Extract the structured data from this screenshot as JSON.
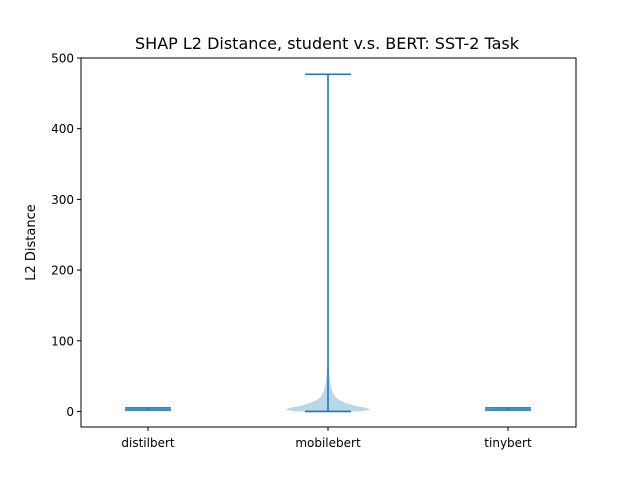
{
  "chart_data": {
    "type": "violin",
    "title": "SHAP L2 Distance, student v.s. BERT: SST-2 Task",
    "xlabel": "",
    "ylabel": "L2 Distance",
    "categories": [
      "distilbert",
      "mobilebert",
      "tinybert"
    ],
    "ylim": [
      -22,
      500
    ],
    "yticks": [
      0,
      100,
      200,
      300,
      400,
      500
    ],
    "grid": false,
    "series": [
      {
        "category": "distilbert",
        "min": 2,
        "max": 5,
        "density": [
          {
            "y": 2.0,
            "w": 0.05
          },
          {
            "y": 2.5,
            "w": 0.25
          },
          {
            "y": 3.0,
            "w": 0.5
          },
          {
            "y": 3.5,
            "w": 0.5
          },
          {
            "y": 4.0,
            "w": 0.3
          },
          {
            "y": 4.5,
            "w": 0.1
          },
          {
            "y": 5.0,
            "w": 0.02
          }
        ]
      },
      {
        "category": "mobilebert",
        "min": 0,
        "max": 477,
        "density": [
          {
            "y": 0,
            "w": 0.65
          },
          {
            "y": 2,
            "w": 0.95
          },
          {
            "y": 5,
            "w": 0.85
          },
          {
            "y": 8,
            "w": 0.6
          },
          {
            "y": 12,
            "w": 0.4
          },
          {
            "y": 16,
            "w": 0.25
          },
          {
            "y": 20,
            "w": 0.17
          },
          {
            "y": 25,
            "w": 0.12
          },
          {
            "y": 30,
            "w": 0.09
          },
          {
            "y": 35,
            "w": 0.065
          },
          {
            "y": 40,
            "w": 0.05
          },
          {
            "y": 45,
            "w": 0.04
          },
          {
            "y": 50,
            "w": 0.03
          },
          {
            "y": 55,
            "w": 0.022
          },
          {
            "y": 60,
            "w": 0.015
          },
          {
            "y": 65,
            "w": 0.008
          },
          {
            "y": 70,
            "w": 0.003
          },
          {
            "y": 75,
            "w": 0.0
          }
        ]
      },
      {
        "category": "tinybert",
        "min": 2,
        "max": 5,
        "density": [
          {
            "y": 2.0,
            "w": 0.05
          },
          {
            "y": 2.5,
            "w": 0.25
          },
          {
            "y": 3.0,
            "w": 0.5
          },
          {
            "y": 3.5,
            "w": 0.5
          },
          {
            "y": 4.0,
            "w": 0.3
          },
          {
            "y": 4.5,
            "w": 0.1
          },
          {
            "y": 5.0,
            "w": 0.02
          }
        ]
      }
    ],
    "colors": {
      "body": "#1f77b4",
      "body_opacity": 0.3,
      "lines": "#1f77b4"
    }
  }
}
